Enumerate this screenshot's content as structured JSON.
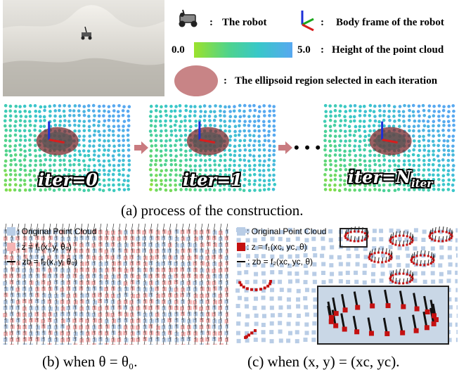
{
  "legend": {
    "robot_label": "The robot",
    "frame_label": "Body frame of the robot",
    "height_min": "0.0",
    "height_max": "5.0",
    "height_label": "Height of the point cloud",
    "ellipse_label": "The ellipsoid region selected in each iteration",
    "colon": ":"
  },
  "iterations": {
    "first": "iter=0",
    "second": "iter=1",
    "ellipsis": "• • •",
    "last_main": "iter=N",
    "last_sub": "iter"
  },
  "captions": {
    "a": "(a) process of the construction.",
    "b": "(b) when θ = θ₀.",
    "c": "(c) when (x, y) = (xc, yc)."
  },
  "panel_b_legend": {
    "original": ": Original Point Cloud",
    "z_eq": ": z = f₁(x, y, θ₀)",
    "zb_eq": ": zb = f₂(x, y, θ₀)"
  },
  "panel_c_legend": {
    "original": ": Original Point Cloud",
    "z_eq": ": z = f₁(xc, yc, θ)",
    "zb_eq": ": zb = f₂(xc, yc, θ)"
  },
  "colors": {
    "ellipse": "#c88486",
    "arrow": "#c97b80",
    "height_low": "#9be22c",
    "height_high": "#57a8f0",
    "original_cloud": "#b9cde6",
    "fitted_b": "#f4b4b4",
    "fitted_c": "#c41010"
  },
  "icons": [
    "robot-icon",
    "body-frame-icon"
  ]
}
